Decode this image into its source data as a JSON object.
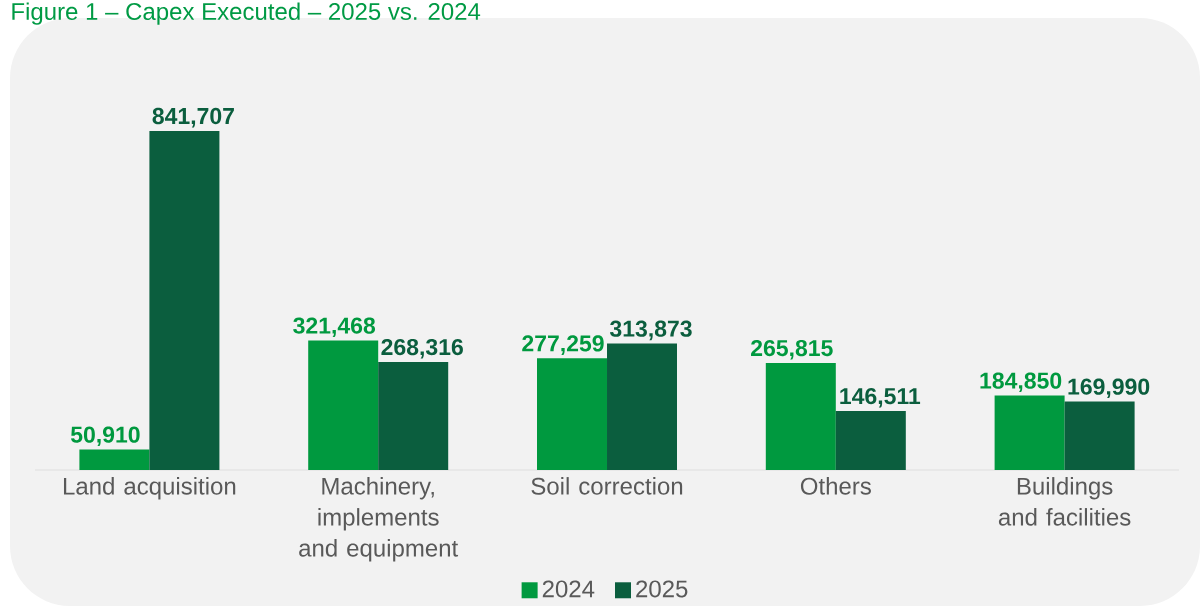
{
  "chart_data": {
    "type": "bar",
    "title": "Figure 1 – Capex Executed – 2025 vs. 2024",
    "categories": [
      "Land acquisition",
      "Machinery, implements and equipment",
      "Soil correction",
      "Others",
      "Buildings and facilities"
    ],
    "series": [
      {
        "name": "2024",
        "color": "#00993f",
        "values": [
          50910,
          321468,
          277259,
          265815,
          184850
        ],
        "value_labels": [
          "50,910",
          "321,468",
          "277,259",
          "265,815",
          "184,850"
        ]
      },
      {
        "name": "2025",
        "color": "#0b5e3e",
        "values": [
          841707,
          268316,
          313873,
          146511,
          169990
        ],
        "value_labels": [
          "841,707",
          "268,316",
          "313,873",
          "146,511",
          "169,990"
        ]
      }
    ],
    "legend": "bottom"
  }
}
